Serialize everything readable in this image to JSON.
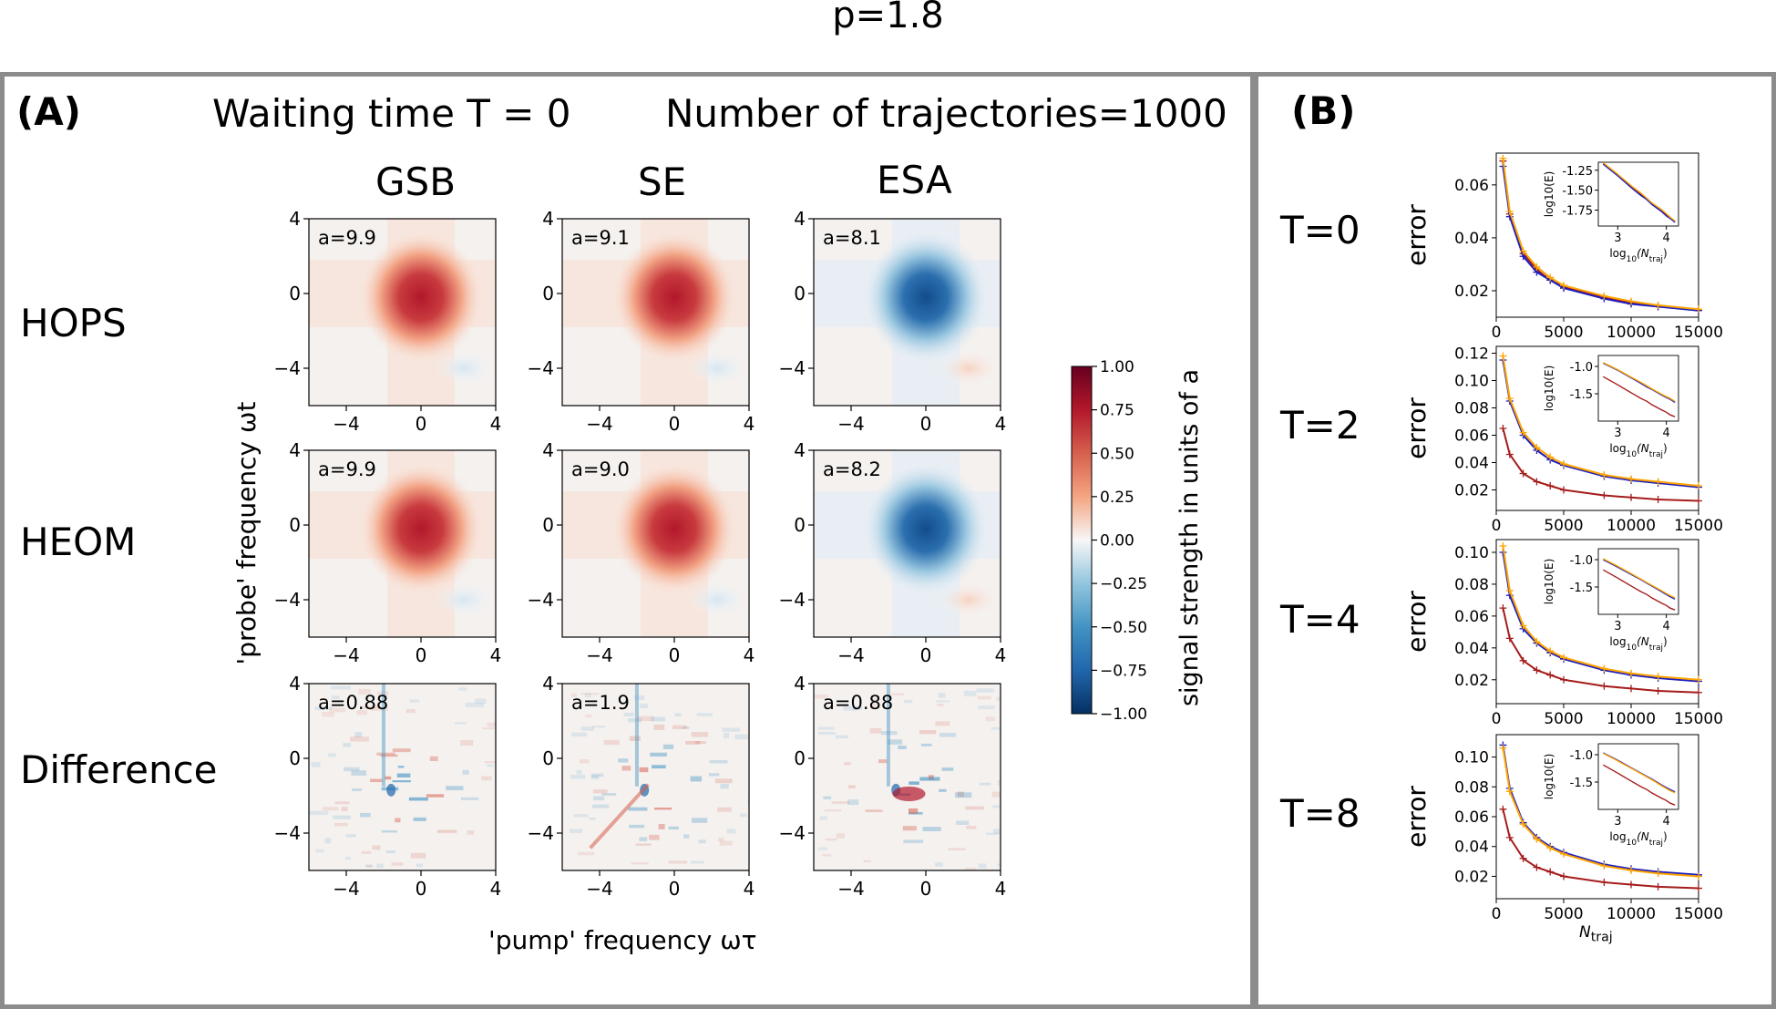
{
  "figure_title": "p=1.8",
  "panelA": {
    "label": "(A)",
    "waiting_time": "Waiting time  T = 0",
    "trajectories": "Number of trajectories=1000",
    "columns": [
      "GSB",
      "SE",
      "ESA"
    ],
    "rows": [
      "HOPS",
      "HEOM",
      "Difference"
    ],
    "y_axis_label": "'probe' frequency  ωt",
    "x_axis_label": "'pump' frequency  ωτ",
    "x_ticks": [
      "−4",
      "0",
      "4"
    ],
    "y_ticks": [
      "4",
      "0",
      "−4"
    ],
    "amplitudes": [
      [
        "a=9.9",
        "a=9.1",
        "a=8.1"
      ],
      [
        "a=9.9",
        "a=9.0",
        "a=8.2"
      ],
      [
        "a=0.88",
        "a=1.9",
        "a=0.88"
      ]
    ],
    "colorbar": {
      "label": "signal strength in units of a",
      "ticks": [
        "1.00",
        "0.75",
        "0.50",
        "0.25",
        "0.00",
        "−0.25",
        "−0.50",
        "−0.75",
        "−1.00"
      ],
      "colors": {
        "neg": "#053061",
        "mid": "#f7f7f7",
        "pos": "#67001f"
      }
    }
  },
  "panelB": {
    "label": "(B)",
    "x_axis_label": "N",
    "x_axis_sub": "traj",
    "y_axis_label": "error",
    "inset_xlabel": "log",
    "inset_xsub": "10",
    "inset_xparen": "(N",
    "inset_xsub2": "traj",
    "inset_ylabel": "log10(E)",
    "x_ticks": [
      "0",
      "5000",
      "10000",
      "15000"
    ],
    "series_colors": {
      "blue": "#1f1fbf",
      "orange": "#ffa500",
      "red": "#a51c1c"
    }
  },
  "chart_data": [
    {
      "type": "line",
      "row_label": "T=0",
      "title": "T=0",
      "xlabel": "N_traj",
      "ylabel": "error",
      "xlim": [
        0,
        15000
      ],
      "ylim": [
        0.01,
        0.072
      ],
      "y_ticks": [
        "0.02",
        "0.04",
        "0.06"
      ],
      "x": [
        500,
        1000,
        2000,
        3000,
        4000,
        5000,
        8000,
        10000,
        12000,
        15000
      ],
      "series": [
        {
          "name": "blue",
          "values": [
            0.067,
            0.048,
            0.033,
            0.027,
            0.024,
            0.021,
            0.017,
            0.015,
            0.014,
            0.0125
          ]
        },
        {
          "name": "orange",
          "values": [
            0.07,
            0.05,
            0.035,
            0.029,
            0.025,
            0.022,
            0.018,
            0.016,
            0.0145,
            0.013
          ]
        },
        {
          "name": "red",
          "values": [
            0.069,
            0.049,
            0.034,
            0.028,
            0.024,
            0.0215,
            0.0175,
            0.0155,
            0.014,
            0.0128
          ]
        }
      ],
      "inset": {
        "y_ticks": [
          "-1.25",
          "-1.50",
          "-1.75"
        ],
        "x_ticks": [
          "3",
          "4"
        ],
        "xlim": [
          2.6,
          4.25
        ],
        "ylim": [
          -1.95,
          -1.15
        ]
      }
    },
    {
      "type": "line",
      "row_label": "T=2",
      "title": "T=2",
      "xlabel": "N_traj",
      "ylabel": "error",
      "xlim": [
        0,
        15000
      ],
      "ylim": [
        0.005,
        0.125
      ],
      "y_ticks": [
        "0.02",
        "0.04",
        "0.06",
        "0.08",
        "0.10",
        "0.12"
      ],
      "x": [
        500,
        1000,
        2000,
        3000,
        4000,
        5000,
        8000,
        10000,
        12000,
        15000
      ],
      "series": [
        {
          "name": "blue",
          "values": [
            0.115,
            0.085,
            0.06,
            0.049,
            0.042,
            0.038,
            0.03,
            0.027,
            0.025,
            0.022
          ]
        },
        {
          "name": "orange",
          "values": [
            0.118,
            0.087,
            0.062,
            0.051,
            0.044,
            0.039,
            0.031,
            0.028,
            0.026,
            0.023
          ]
        },
        {
          "name": "red",
          "values": [
            0.065,
            0.046,
            0.032,
            0.026,
            0.023,
            0.02,
            0.016,
            0.0145,
            0.013,
            0.012
          ]
        }
      ],
      "inset": {
        "y_ticks": [
          "-1.0",
          "-1.5"
        ],
        "x_ticks": [
          "3",
          "4"
        ],
        "xlim": [
          2.6,
          4.25
        ],
        "ylim": [
          -2.0,
          -0.8
        ]
      }
    },
    {
      "type": "line",
      "row_label": "T=4",
      "title": "T=4",
      "xlabel": "N_traj",
      "ylabel": "error",
      "xlim": [
        0,
        15000
      ],
      "ylim": [
        0.005,
        0.108
      ],
      "y_ticks": [
        "0.02",
        "0.04",
        "0.06",
        "0.08",
        "0.10"
      ],
      "x": [
        500,
        1000,
        2000,
        3000,
        4000,
        5000,
        8000,
        10000,
        12000,
        15000
      ],
      "series": [
        {
          "name": "blue",
          "values": [
            0.1,
            0.073,
            0.052,
            0.043,
            0.037,
            0.033,
            0.026,
            0.023,
            0.021,
            0.019
          ]
        },
        {
          "name": "orange",
          "values": [
            0.104,
            0.076,
            0.054,
            0.044,
            0.038,
            0.034,
            0.027,
            0.024,
            0.022,
            0.02
          ]
        },
        {
          "name": "red",
          "values": [
            0.065,
            0.046,
            0.032,
            0.026,
            0.023,
            0.02,
            0.016,
            0.0145,
            0.013,
            0.012
          ]
        }
      ],
      "inset": {
        "y_ticks": [
          "-1.0",
          "-1.5"
        ],
        "x_ticks": [
          "3",
          "4"
        ],
        "xlim": [
          2.6,
          4.25
        ],
        "ylim": [
          -2.0,
          -0.8
        ]
      }
    },
    {
      "type": "line",
      "row_label": "T=8",
      "title": "T=8",
      "xlabel": "N_traj",
      "ylabel": "error",
      "xlim": [
        0,
        15000
      ],
      "ylim": [
        0.005,
        0.115
      ],
      "y_ticks": [
        "0.02",
        "0.04",
        "0.06",
        "0.08",
        "0.10"
      ],
      "x": [
        500,
        1000,
        2000,
        3000,
        4000,
        5000,
        8000,
        10000,
        12000,
        15000
      ],
      "series": [
        {
          "name": "blue",
          "values": [
            0.108,
            0.079,
            0.056,
            0.046,
            0.04,
            0.036,
            0.028,
            0.025,
            0.023,
            0.021
          ]
        },
        {
          "name": "orange",
          "values": [
            0.106,
            0.077,
            0.055,
            0.045,
            0.039,
            0.035,
            0.027,
            0.024,
            0.022,
            0.02
          ]
        },
        {
          "name": "red",
          "values": [
            0.065,
            0.046,
            0.032,
            0.026,
            0.023,
            0.02,
            0.016,
            0.0145,
            0.013,
            0.012
          ]
        }
      ],
      "inset": {
        "y_ticks": [
          "-1.0",
          "-1.5"
        ],
        "x_ticks": [
          "3",
          "4"
        ],
        "xlim": [
          2.6,
          4.25
        ],
        "ylim": [
          -2.0,
          -0.8
        ]
      }
    }
  ]
}
